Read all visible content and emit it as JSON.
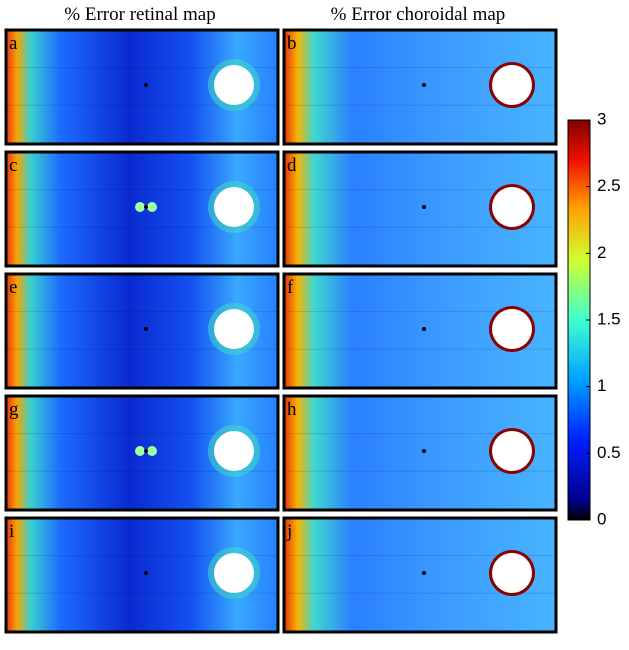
{
  "column_titles": [
    "% Error retinal map",
    "% Error choroidal map"
  ],
  "panels": [
    {
      "label": "a"
    },
    {
      "label": "b"
    },
    {
      "label": "c"
    },
    {
      "label": "d"
    },
    {
      "label": "e"
    },
    {
      "label": "f"
    },
    {
      "label": "g"
    },
    {
      "label": "h"
    },
    {
      "label": "i"
    },
    {
      "label": "j"
    }
  ],
  "colorbar": {
    "lim": [
      0,
      3
    ],
    "ticks": [
      0,
      0.5,
      1,
      1.5,
      2,
      2.5,
      3
    ]
  }
}
